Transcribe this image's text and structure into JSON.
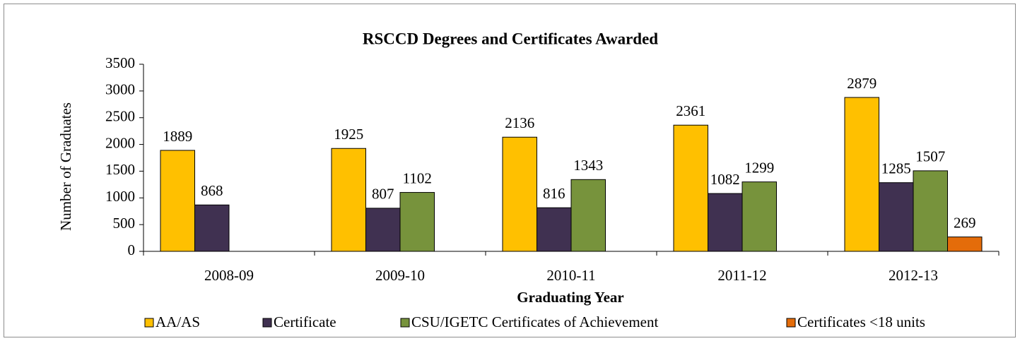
{
  "chart_data": {
    "type": "bar",
    "title": "RSCCD Degrees and Certificates Awarded",
    "x_label": "Graduating Year",
    "y_label": "Number of Graduates",
    "categories": [
      "2008-09",
      "2009-10",
      "2010-11",
      "2011-12",
      "2012-13"
    ],
    "series": [
      {
        "name": "AA/AS",
        "color": "#FFC000",
        "values": [
          1889,
          1925,
          2136,
          2361,
          2879
        ]
      },
      {
        "name": "Certificate",
        "color": "#403151",
        "values": [
          868,
          807,
          816,
          1082,
          1285
        ]
      },
      {
        "name": "CSU/IGETC Certificates of Achievement",
        "color": "#77933C",
        "values": [
          null,
          1102,
          1343,
          1299,
          1507
        ]
      },
      {
        "name": "Certificates <18 units",
        "color": "#E46C0A",
        "values": [
          null,
          null,
          null,
          null,
          269
        ]
      }
    ],
    "ylim": [
      0,
      3500
    ],
    "yticks": [
      0,
      500,
      1000,
      1500,
      2000,
      2500,
      3000,
      3500
    ],
    "grid": false,
    "legend": "bottom"
  }
}
